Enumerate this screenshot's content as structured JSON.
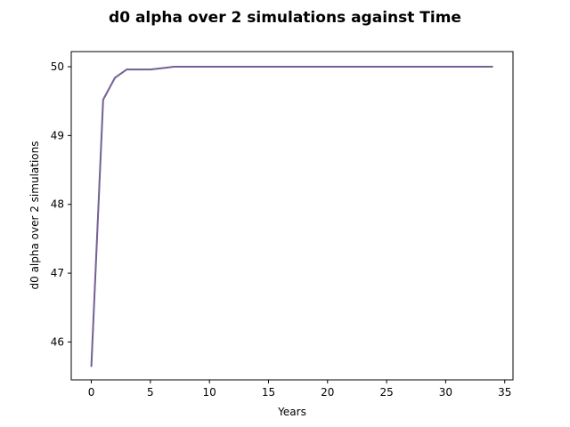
{
  "chart_data": {
    "type": "line",
    "title": "d0 alpha over 2 simulations against Time",
    "xlabel": "Years",
    "ylabel": "d0 alpha over 2 simulations",
    "xlim": [
      -1.7,
      35.7
    ],
    "ylim": [
      45.45,
      50.22
    ],
    "xticks": [
      0,
      5,
      10,
      15,
      20,
      25,
      30,
      35
    ],
    "yticks": [
      46,
      47,
      48,
      49,
      50
    ],
    "grid": false,
    "series": [
      {
        "color": "#1f77b4",
        "x": [
          0,
          1,
          2,
          3,
          4,
          5,
          6,
          7,
          8,
          9,
          10,
          11,
          12,
          13,
          14,
          15,
          16,
          17,
          18,
          19,
          20,
          21,
          22,
          23,
          24,
          25,
          26,
          27,
          28,
          29,
          30,
          31,
          32,
          33,
          34
        ],
        "y": [
          45.64,
          49.52,
          49.84,
          49.96,
          49.96,
          49.96,
          49.98,
          50.0,
          50.0,
          50.0,
          50.0,
          50.0,
          50.0,
          50.0,
          50.0,
          50.0,
          50.0,
          50.0,
          50.0,
          50.0,
          50.0,
          50.0,
          50.0,
          50.0,
          50.0,
          50.0,
          50.0,
          50.0,
          50.0,
          50.0,
          50.0,
          50.0,
          50.0,
          50.0,
          50.0
        ]
      },
      {
        "color": "#8e5a8a",
        "x": [
          0,
          1,
          2,
          3,
          4,
          5,
          6,
          7,
          8,
          9,
          10,
          11,
          12,
          13,
          14,
          15,
          16,
          17,
          18,
          19,
          20,
          21,
          22,
          23,
          24,
          25,
          26,
          27,
          28,
          29,
          30,
          31,
          32,
          33,
          34
        ],
        "y": [
          45.64,
          49.52,
          49.84,
          49.96,
          49.96,
          49.96,
          49.98,
          50.0,
          50.0,
          50.0,
          50.0,
          50.0,
          50.0,
          50.0,
          50.0,
          50.0,
          50.0,
          50.0,
          50.0,
          50.0,
          50.0,
          50.0,
          50.0,
          50.0,
          50.0,
          50.0,
          50.0,
          50.0,
          50.0,
          50.0,
          50.0,
          50.0,
          50.0,
          50.0,
          50.0
        ]
      }
    ]
  }
}
